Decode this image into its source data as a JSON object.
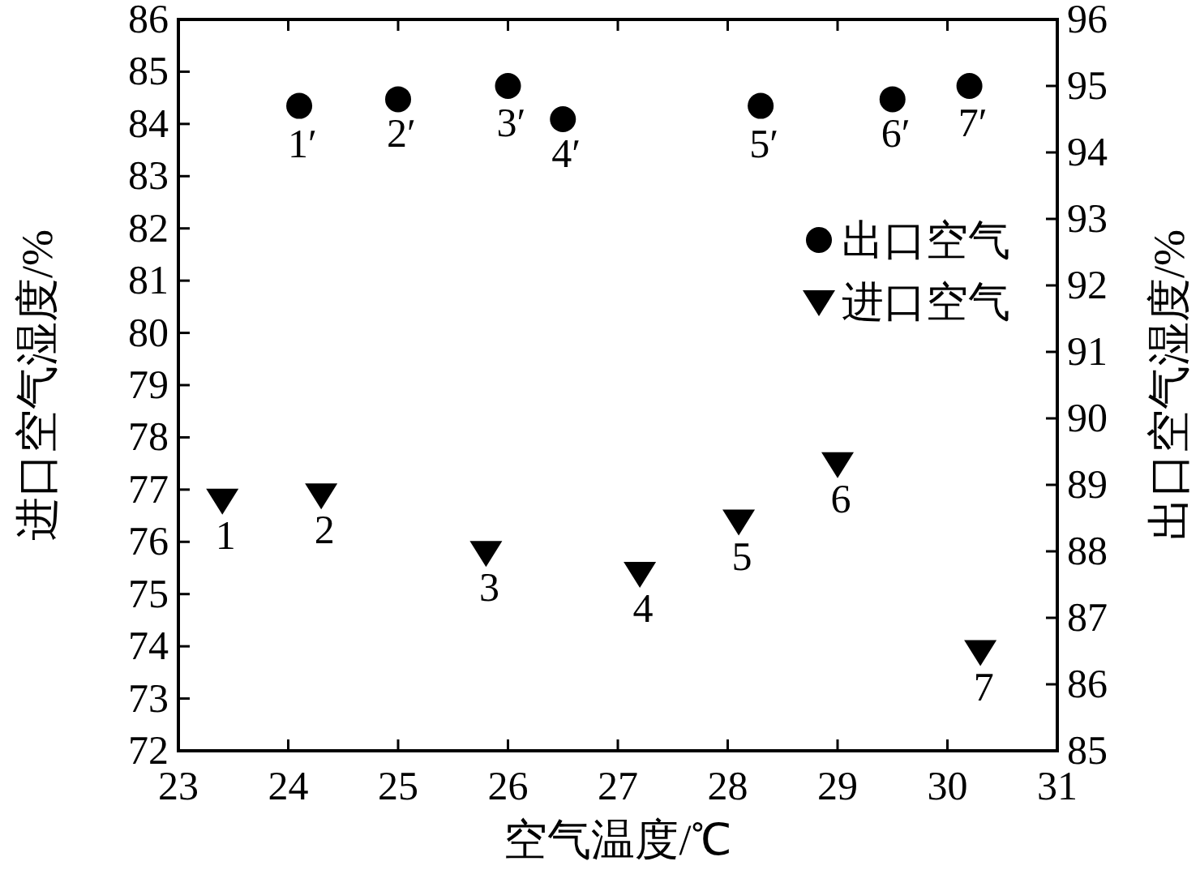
{
  "chart_data": {
    "type": "scatter",
    "xlabel": "空气温度/℃",
    "ylabel": "进口空气湿度/%",
    "y2label": "出口空气湿度/%",
    "xlim": [
      23,
      31
    ],
    "xticks": [
      23,
      24,
      25,
      26,
      27,
      28,
      29,
      30,
      31
    ],
    "ylim": [
      72,
      86
    ],
    "yticks": [
      72,
      73,
      74,
      75,
      76,
      77,
      78,
      79,
      80,
      81,
      82,
      83,
      84,
      85,
      86
    ],
    "y2lim": [
      85,
      96
    ],
    "y2ticks": [
      85,
      86,
      87,
      88,
      89,
      90,
      91,
      92,
      93,
      94,
      95,
      96
    ],
    "legend": "right",
    "grid": false,
    "series": [
      {
        "name": "出口空气",
        "color": "#000000",
        "marker": "circle",
        "axis": "y2",
        "x": [
          24.1,
          25.0,
          26.0,
          26.5,
          28.3,
          29.5,
          30.2
        ],
        "values": [
          94.7,
          94.8,
          95.0,
          94.5,
          94.7,
          94.8,
          95.0
        ]
      },
      {
        "name": "进口空气",
        "color": "#000000",
        "marker": "triangle",
        "x": [
          23.4,
          24.3,
          25.8,
          27.2,
          28.1,
          29.0,
          30.3
        ],
        "values": [
          76.8,
          76.9,
          75.8,
          75.4,
          76.4,
          77.5,
          73.9
        ]
      }
    ],
    "annotations": [
      {
        "text": "1′",
        "x": 24.1,
        "y": 84.3
      },
      {
        "text": "2′",
        "x": 25.0,
        "y": 84.5
      },
      {
        "text": "3′",
        "x": 26.0,
        "y": 84.7
      },
      {
        "text": "4′",
        "x": 26.5,
        "y": 84.1
      },
      {
        "text": "5′",
        "x": 28.3,
        "y": 84.3
      },
      {
        "text": "6′",
        "x": 29.5,
        "y": 84.5
      },
      {
        "text": "7′",
        "x": 30.2,
        "y": 84.7
      },
      {
        "text": "1",
        "x": 23.4,
        "y": 76.8
      },
      {
        "text": "2",
        "x": 24.3,
        "y": 76.9
      },
      {
        "text": "3",
        "x": 25.8,
        "y": 75.8
      },
      {
        "text": "4",
        "x": 27.2,
        "y": 75.4
      },
      {
        "text": "5",
        "x": 28.1,
        "y": 76.4
      },
      {
        "text": "6",
        "x": 29.0,
        "y": 77.5
      },
      {
        "text": "7",
        "x": 30.3,
        "y": 73.9
      }
    ]
  }
}
